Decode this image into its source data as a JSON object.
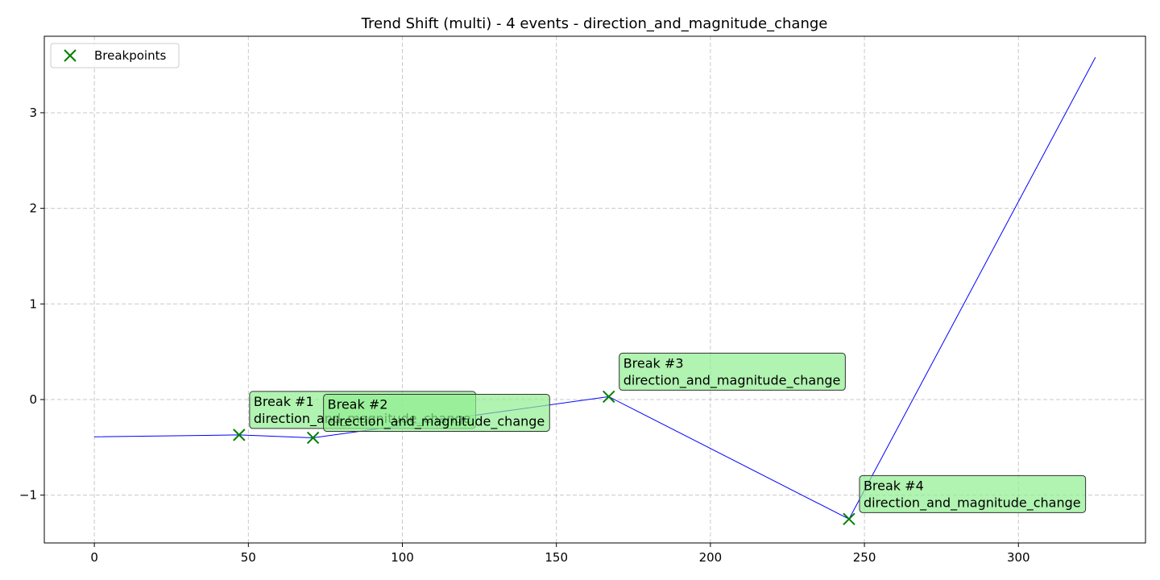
{
  "chart_data": {
    "type": "line",
    "title": "Trend Shift (multi) - 4 events - direction_and_magnitude_change",
    "xlabel": "",
    "ylabel": "",
    "xlim": [
      -16.25,
      341.25
    ],
    "ylim": [
      -1.5,
      3.8
    ],
    "xticks": [
      0,
      50,
      100,
      150,
      200,
      250,
      300
    ],
    "yticks": [
      -1,
      0,
      1,
      2,
      3
    ],
    "grid": true,
    "legend_position": "upper-left",
    "line_color": "#0000ff",
    "marker_color": "#008000",
    "annotation_fill": "#90ee90",
    "series": [
      {
        "points": [
          {
            "x": 0,
            "y": -0.39
          },
          {
            "x": 47,
            "y": -0.37
          },
          {
            "x": 71,
            "y": -0.4
          },
          {
            "x": 167,
            "y": 0.03
          },
          {
            "x": 245,
            "y": -1.25
          },
          {
            "x": 325,
            "y": 3.58
          }
        ]
      }
    ],
    "breakpoints": {
      "legend_label": "Breakpoints",
      "points": [
        {
          "x": 47,
          "y": -0.37,
          "label": "Break #1",
          "event": "direction_and_magnitude_change"
        },
        {
          "x": 71,
          "y": -0.4,
          "label": "Break #2",
          "event": "direction_and_magnitude_change"
        },
        {
          "x": 167,
          "y": 0.03,
          "label": "Break #3",
          "event": "direction_and_magnitude_change"
        },
        {
          "x": 245,
          "y": -1.25,
          "label": "Break #4",
          "event": "direction_and_magnitude_change"
        }
      ]
    }
  }
}
